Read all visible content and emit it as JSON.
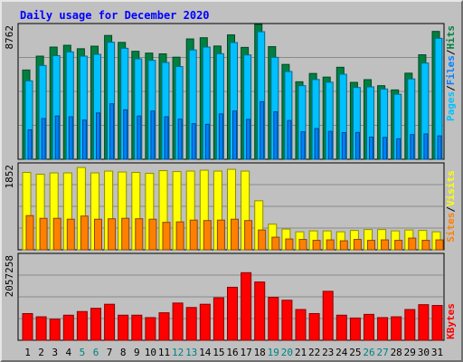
{
  "title": "Daily usage for December 2020",
  "colors": {
    "background": "#c0c0c0",
    "title": "#0000ff",
    "hits": "#008040",
    "files": "#00c0ff",
    "pages": "#0080ff",
    "visits": "#ffff00",
    "sites": "#ff8000",
    "kbytes": "#ff0000",
    "weekend_day": "#008080",
    "weekday_day": "#000000"
  },
  "chart_data": [
    {
      "type": "bar",
      "panel": "hits-files-pages",
      "ymax_label": "8762",
      "ymax": 8762,
      "legend": [
        "Pages",
        "/",
        "Files",
        "/",
        "Hits"
      ],
      "categories": [
        "1",
        "2",
        "3",
        "4",
        "5",
        "6",
        "7",
        "8",
        "9",
        "10",
        "11",
        "12",
        "13",
        "14",
        "15",
        "16",
        "17",
        "18",
        "19",
        "20",
        "21",
        "22",
        "23",
        "24",
        "25",
        "26",
        "27",
        "28",
        "29",
        "30",
        "31"
      ],
      "series": [
        {
          "name": "Hits",
          "values": [
            5920,
            6840,
            7440,
            7560,
            7330,
            7500,
            8210,
            7750,
            7160,
            7040,
            6990,
            6770,
            7980,
            8060,
            7510,
            8250,
            7420,
            8940,
            7470,
            6290,
            5140,
            5690,
            5450,
            6100,
            5100,
            5280,
            4880,
            4600,
            5710,
            6930,
            8480
          ]
        },
        {
          "name": "Files",
          "values": [
            5200,
            6220,
            6870,
            7120,
            6840,
            6960,
            7760,
            7360,
            6660,
            6560,
            6420,
            6150,
            7250,
            7440,
            7000,
            7740,
            6920,
            8460,
            6760,
            5820,
            4880,
            5290,
            5110,
            5640,
            4760,
            4800,
            4660,
            4310,
            5330,
            6380,
            8020
          ]
        },
        {
          "name": "Pages",
          "values": [
            1950,
            2700,
            2870,
            2820,
            2600,
            3070,
            3680,
            3280,
            2870,
            3200,
            2820,
            2660,
            2360,
            2320,
            3010,
            3200,
            2650,
            3820,
            3150,
            2570,
            1820,
            2040,
            1850,
            1770,
            1780,
            1470,
            1450,
            1360,
            1640,
            1680,
            1550
          ]
        }
      ]
    },
    {
      "type": "bar",
      "panel": "visits-sites",
      "ymax_label": "1852",
      "ymax": 1852,
      "legend": [
        "Sites",
        "/",
        "Visits"
      ],
      "categories": [
        "1",
        "2",
        "3",
        "4",
        "5",
        "6",
        "7",
        "8",
        "9",
        "10",
        "11",
        "12",
        "13",
        "14",
        "15",
        "16",
        "17",
        "18",
        "19",
        "20",
        "21",
        "22",
        "23",
        "24",
        "25",
        "26",
        "27",
        "28",
        "29",
        "30",
        "31"
      ],
      "series": [
        {
          "name": "Visits",
          "values": [
            1720,
            1680,
            1710,
            1710,
            1830,
            1710,
            1750,
            1730,
            1720,
            1700,
            1760,
            1740,
            1750,
            1770,
            1750,
            1790,
            1750,
            1090,
            570,
            460,
            400,
            420,
            420,
            400,
            430,
            450,
            450,
            420,
            440,
            430,
            400
          ]
        },
        {
          "name": "Sites",
          "values": [
            760,
            700,
            700,
            680,
            750,
            680,
            690,
            700,
            690,
            680,
            610,
            620,
            660,
            650,
            660,
            680,
            650,
            440,
            280,
            240,
            230,
            210,
            220,
            200,
            230,
            210,
            220,
            210,
            260,
            210,
            220
          ]
        }
      ]
    },
    {
      "type": "bar",
      "panel": "kbytes",
      "ymax_label": "2057258",
      "ymax": 2057258,
      "legend": [
        "KBytes"
      ],
      "categories": [
        "1",
        "2",
        "3",
        "4",
        "5",
        "6",
        "7",
        "8",
        "9",
        "10",
        "11",
        "12",
        "13",
        "14",
        "15",
        "16",
        "17",
        "18",
        "19",
        "20",
        "21",
        "22",
        "23",
        "24",
        "25",
        "26",
        "27",
        "28",
        "29",
        "30",
        "31"
      ],
      "series": [
        {
          "name": "KBytes",
          "values": [
            660000,
            580000,
            520000,
            620000,
            710000,
            790000,
            890000,
            620000,
            620000,
            560000,
            680000,
            920000,
            810000,
            890000,
            1050000,
            1310000,
            1670000,
            1440000,
            1060000,
            990000,
            760000,
            660000,
            1210000,
            620000,
            550000,
            640000,
            560000,
            580000,
            760000,
            880000,
            860000
          ]
        }
      ]
    }
  ],
  "weekend_days": [
    5,
    6,
    12,
    13,
    19,
    20,
    26,
    27
  ]
}
